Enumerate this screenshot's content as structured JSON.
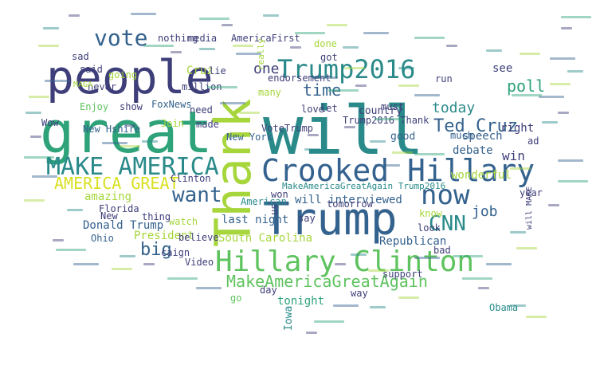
{
  "palette": {
    "dark_blue": "#3b4b87",
    "indigo": "#3e3e7a",
    "teal": "#2a8a8a",
    "green": "#2ea37a",
    "mid_blue": "#34628e",
    "lime": "#a6d63c",
    "bright_green": "#5ec35e",
    "yellow": "#d9e020",
    "purple": "#472c7a"
  },
  "words": [
    {
      "text": "will",
      "color": "teal"
    },
    {
      "text": "great",
      "color": "green"
    },
    {
      "text": "people",
      "color": "indigo"
    },
    {
      "text": "Thank",
      "color": "lime"
    },
    {
      "text": "Trump",
      "color": "mid_blue"
    },
    {
      "text": "Crooked Hillary",
      "color": "mid_blue"
    },
    {
      "text": "Hillary Clinton",
      "color": "bright_green"
    },
    {
      "text": "MAKE AMERICA",
      "color": "teal"
    },
    {
      "text": "Trump2016",
      "color": "teal"
    },
    {
      "text": "vote",
      "color": "mid_blue"
    },
    {
      "text": "now",
      "color": "mid_blue"
    },
    {
      "text": "CNN",
      "color": "teal"
    },
    {
      "text": "want",
      "color": "mid_blue"
    },
    {
      "text": "AMERICA GREAT",
      "color": "yellow"
    },
    {
      "text": "MakeAmericaGreatAgain",
      "color": "bright_green"
    },
    {
      "text": "Ted Cruz",
      "color": "mid_blue"
    },
    {
      "text": "today",
      "color": "teal"
    },
    {
      "text": "poll",
      "color": "green"
    },
    {
      "text": "time",
      "color": "mid_blue"
    },
    {
      "text": "one",
      "color": "indigo"
    },
    {
      "text": "job",
      "color": "mid_blue"
    },
    {
      "text": "big",
      "color": "mid_blue"
    },
    {
      "text": "Republican",
      "color": "mid_blue"
    },
    {
      "text": "South Carolina",
      "color": "lime"
    },
    {
      "text": "President",
      "color": "lime"
    },
    {
      "text": "Donald Trump",
      "color": "mid_blue"
    },
    {
      "text": "amazing",
      "color": "lime"
    },
    {
      "text": "Cruz",
      "color": "lime"
    },
    {
      "text": "AmericaFirst",
      "color": "indigo"
    },
    {
      "text": "endorsement",
      "color": "indigo"
    },
    {
      "text": "MakeAmericaGreatAgain Trump2016",
      "color": "teal"
    },
    {
      "text": "will interviewed",
      "color": "mid_blue"
    },
    {
      "text": "last night",
      "color": "mid_blue"
    },
    {
      "text": "tonight",
      "color": "green"
    },
    {
      "text": "Iowa",
      "color": "teal"
    },
    {
      "text": "speech",
      "color": "mid_blue"
    },
    {
      "text": "debate",
      "color": "mid_blue"
    },
    {
      "text": "win",
      "color": "indigo"
    },
    {
      "text": "much",
      "color": "mid_blue"
    },
    {
      "text": "good",
      "color": "mid_blue"
    },
    {
      "text": "wonderful",
      "color": "lime"
    },
    {
      "text": "country",
      "color": "indigo"
    },
    {
      "text": "Trump2016 Thank",
      "color": "indigo"
    },
    {
      "text": "run",
      "color": "indigo"
    },
    {
      "text": "see",
      "color": "indigo"
    },
    {
      "text": "right",
      "color": "indigo"
    },
    {
      "text": "ad",
      "color": "indigo"
    },
    {
      "text": "must",
      "color": "indigo"
    },
    {
      "text": "love",
      "color": "indigo"
    },
    {
      "text": "VoteTrump",
      "color": "indigo"
    },
    {
      "text": "FoxNews",
      "color": "mid_blue"
    },
    {
      "text": "New York",
      "color": "mid_blue"
    },
    {
      "text": "million",
      "color": "indigo"
    },
    {
      "text": "need",
      "color": "indigo"
    },
    {
      "text": "made",
      "color": "indigo"
    },
    {
      "text": "show",
      "color": "indigo"
    },
    {
      "text": "Enjoy",
      "color": "bright_green"
    },
    {
      "text": "New Hshire",
      "color": "mid_blue"
    },
    {
      "text": "Join",
      "color": "lime"
    },
    {
      "text": "Wow",
      "color": "indigo"
    },
    {
      "text": "never",
      "color": "indigo"
    },
    {
      "text": "lie",
      "color": "indigo"
    },
    {
      "text": "going",
      "color": "lime"
    },
    {
      "text": "said",
      "color": "indigo"
    },
    {
      "text": "sad",
      "color": "indigo"
    },
    {
      "text": "nothing",
      "color": "indigo"
    },
    {
      "text": "media",
      "color": "indigo"
    },
    {
      "text": "MAGA",
      "color": "lime"
    },
    {
      "text": "done",
      "color": "lime"
    },
    {
      "text": "got",
      "color": "indigo"
    },
    {
      "text": "many",
      "color": "lime"
    },
    {
      "text": "let",
      "color": "indigo"
    },
    {
      "text": "Clinton",
      "color": "indigo"
    },
    {
      "text": "American",
      "color": "teal"
    },
    {
      "text": "won",
      "color": "indigo"
    },
    {
      "text": "tomorrow",
      "color": "indigo"
    },
    {
      "text": "know",
      "color": "lime"
    },
    {
      "text": "say",
      "color": "indigo"
    },
    {
      "text": "look",
      "color": "indigo"
    },
    {
      "text": "bad",
      "color": "indigo"
    },
    {
      "text": "year",
      "color": "indigo"
    },
    {
      "text": "support",
      "color": "indigo"
    },
    {
      "text": "way",
      "color": "indigo"
    },
    {
      "text": "day",
      "color": "indigo"
    },
    {
      "text": "go",
      "color": "bright_green"
    },
    {
      "text": "Obama",
      "color": "teal"
    },
    {
      "text": "Ohio",
      "color": "mid_blue"
    },
    {
      "text": "Florida",
      "color": "indigo"
    },
    {
      "text": "New",
      "color": "indigo"
    },
    {
      "text": "watch",
      "color": "lime"
    },
    {
      "text": "believe",
      "color": "indigo"
    },
    {
      "text": "thing",
      "color": "indigo"
    },
    {
      "text": "Video",
      "color": "indigo"
    },
    {
      "text": "caign",
      "color": "indigo"
    },
    {
      "text": "us",
      "color": "indigo"
    },
    {
      "text": "will MAKE",
      "color": "indigo"
    },
    {
      "text": "really",
      "color": "lime"
    }
  ]
}
